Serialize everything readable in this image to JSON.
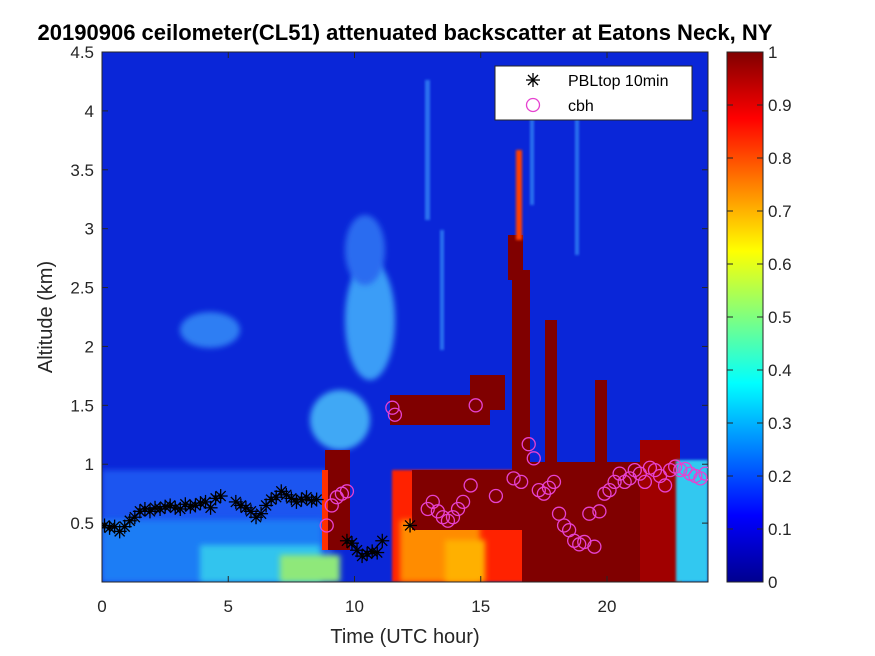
{
  "chart_data": {
    "type": "heatmap",
    "title": "20190906 ceilometer(CL51) attenuated backscatter at Eatons Neck, NY",
    "xlabel": "Time (UTC hour)",
    "ylabel": "Altitude (km)",
    "xlim": [
      0,
      24
    ],
    "ylim": [
      0,
      4.5
    ],
    "xticks": [
      0,
      5,
      10,
      15,
      20
    ],
    "xtick_labels": [
      "0",
      "5",
      "10",
      "15",
      "20"
    ],
    "yticks": [
      0.5,
      1,
      1.5,
      2,
      2.5,
      3,
      3.5,
      4,
      4.5
    ],
    "ytick_labels": [
      "0.5",
      "1",
      "1.5",
      "2",
      "2.5",
      "3",
      "3.5",
      "4",
      "4.5"
    ],
    "colorbar": {
      "min": 0,
      "max": 1,
      "ticks": [
        0,
        0.1,
        0.2,
        0.3,
        0.4,
        0.5,
        0.6,
        0.7,
        0.8,
        0.9,
        1
      ],
      "tick_labels": [
        "0",
        "0.1",
        "0.2",
        "0.3",
        "0.4",
        "0.5",
        "0.6",
        "0.7",
        "0.8",
        "0.9",
        "1"
      ],
      "colormap": "jet"
    },
    "legend": {
      "placement": "top-right",
      "entries": [
        "PBLtop 10min",
        "cbh"
      ]
    },
    "series": [
      {
        "name": "PBLtop 10min",
        "marker": "asterisk",
        "color": "#000000",
        "x": [
          0.1,
          0.3,
          0.5,
          0.7,
          0.9,
          1.1,
          1.3,
          1.5,
          1.7,
          1.9,
          2.1,
          2.3,
          2.5,
          2.7,
          2.9,
          3.1,
          3.3,
          3.5,
          3.7,
          3.9,
          4.1,
          4.3,
          4.5,
          4.7,
          5.3,
          5.5,
          5.7,
          5.9,
          6.1,
          6.3,
          6.5,
          6.7,
          6.9,
          7.1,
          7.3,
          7.5,
          7.7,
          7.9,
          8.1,
          8.3,
          8.5,
          9.7,
          9.9,
          10.1,
          10.3,
          10.5,
          10.7,
          10.9,
          11.1,
          12.2
        ],
        "y": [
          0.48,
          0.46,
          0.47,
          0.43,
          0.47,
          0.52,
          0.55,
          0.6,
          0.62,
          0.6,
          0.63,
          0.62,
          0.64,
          0.65,
          0.63,
          0.62,
          0.66,
          0.64,
          0.65,
          0.67,
          0.68,
          0.63,
          0.71,
          0.73,
          0.68,
          0.65,
          0.63,
          0.6,
          0.55,
          0.58,
          0.65,
          0.7,
          0.72,
          0.77,
          0.74,
          0.71,
          0.68,
          0.7,
          0.72,
          0.69,
          0.7,
          0.35,
          0.33,
          0.27,
          0.22,
          0.24,
          0.26,
          0.25,
          0.35,
          0.48
        ]
      },
      {
        "name": "cbh",
        "marker": "circle",
        "color": "#e642d0",
        "x": [
          8.9,
          9.1,
          9.3,
          9.5,
          9.7,
          11.5,
          11.6,
          12.9,
          13.1,
          13.3,
          13.5,
          13.7,
          13.9,
          14.1,
          14.3,
          14.6,
          14.8,
          15.6,
          16.3,
          16.6,
          16.9,
          17.1,
          17.3,
          17.5,
          17.7,
          17.9,
          18.1,
          18.3,
          18.5,
          18.7,
          18.9,
          19.1,
          19.3,
          19.5,
          19.7,
          19.9,
          20.1,
          20.3,
          20.5,
          20.7,
          20.9,
          21.1,
          21.3,
          21.5,
          21.7,
          21.9,
          22.1,
          22.3,
          22.5,
          22.7,
          22.9,
          23.1,
          23.3,
          23.5,
          23.7,
          23.9
        ],
        "y": [
          0.48,
          0.65,
          0.72,
          0.75,
          0.77,
          1.48,
          1.42,
          0.62,
          0.68,
          0.6,
          0.55,
          0.52,
          0.55,
          0.62,
          0.68,
          0.82,
          1.5,
          0.73,
          0.88,
          0.85,
          1.17,
          1.05,
          0.78,
          0.75,
          0.8,
          0.85,
          0.58,
          0.48,
          0.44,
          0.35,
          0.32,
          0.34,
          0.58,
          0.3,
          0.6,
          0.75,
          0.78,
          0.85,
          0.92,
          0.85,
          0.88,
          0.95,
          0.92,
          0.85,
          0.97,
          0.95,
          0.9,
          0.82,
          0.95,
          0.98,
          0.95,
          0.96,
          0.92,
          0.9,
          0.88,
          0.92
        ]
      }
    ]
  }
}
